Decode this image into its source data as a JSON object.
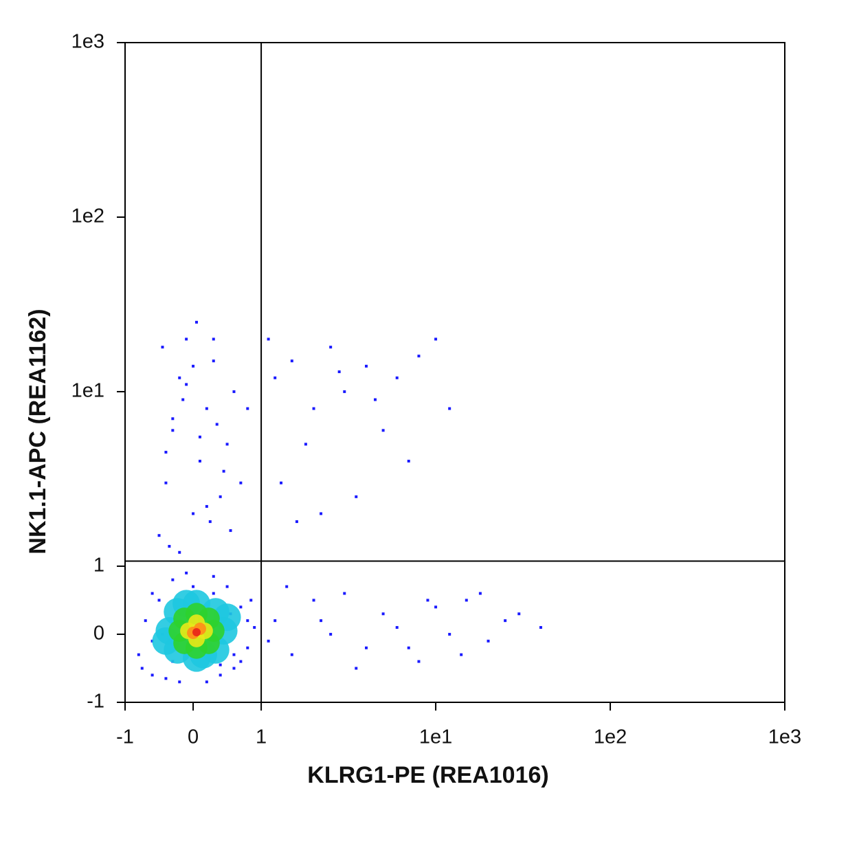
{
  "chart_data": {
    "type": "scatter",
    "x_label": "KLRG1-PE (REA1016)",
    "y_label": "NK1.1-APC (REA1162)",
    "scale": "biexponential",
    "xlim": [
      -1,
      1000
    ],
    "ylim": [
      -1,
      1000
    ],
    "xticks": [
      -1,
      0,
      1,
      {
        "value": 10,
        "label": "1e1"
      },
      {
        "value": 100,
        "label": "1e2"
      },
      {
        "value": 1000,
        "label": "1e3"
      }
    ],
    "yticks": [
      -1,
      0,
      1,
      {
        "value": 10,
        "label": "1e1"
      },
      {
        "value": 100,
        "label": "1e2"
      },
      {
        "value": 1000,
        "label": "1e3"
      }
    ],
    "gates": {
      "x": 1,
      "y": 1.07
    },
    "series": [
      {
        "color": "#1a1aff",
        "x": [
          -0.8,
          -0.7,
          -0.6,
          -0.5,
          -0.4,
          -0.3,
          -0.2,
          -0.1,
          0.2,
          0.3,
          0.4,
          0.5,
          0.6,
          0.7,
          0.8,
          0.9,
          -0.75,
          -0.6,
          -0.45,
          0.55,
          0.7,
          0.85,
          -0.3,
          0.0,
          0.3,
          0.6,
          -0.6,
          0.8,
          -0.2,
          0.4,
          -0.5,
          -0.4,
          -0.3,
          -0.2,
          -0.1,
          0,
          0.1,
          0.2,
          0.3,
          0.4,
          0.5,
          0.6,
          -0.45,
          -0.35,
          -0.15,
          0.05,
          0.25,
          0.45,
          -0.3,
          0,
          0.3,
          -0.2,
          0.2,
          0.1,
          -0.1,
          0.35,
          -0.4,
          0.55,
          0.7,
          0.8,
          1.2,
          1.5,
          2,
          2.5,
          3,
          4,
          5,
          6,
          8,
          12,
          1.3,
          1.8,
          2.2,
          3.5,
          1.1,
          2.8,
          4.5,
          1.6,
          7,
          10,
          1.2,
          1.5,
          2,
          2.5,
          3,
          4,
          5,
          6,
          8,
          10,
          12,
          15,
          20,
          25,
          30,
          40,
          1.4,
          3.5,
          7,
          18,
          1.1,
          2.2,
          9,
          14
        ],
        "y": [
          -0.3,
          0.2,
          -0.6,
          0.5,
          -0.65,
          0.8,
          -0.7,
          0.9,
          -0.7,
          0.85,
          -0.6,
          0.7,
          -0.5,
          0.4,
          -0.2,
          0.1,
          -0.5,
          0.6,
          0.0,
          0.3,
          -0.4,
          0.5,
          -0.4,
          0.7,
          0.6,
          -0.3,
          -0.1,
          0.2,
          0.3,
          -0.45,
          1.5,
          3,
          6,
          12,
          20,
          2,
          4,
          8,
          15,
          2.5,
          5,
          10,
          18,
          1.3,
          9,
          25,
          1.8,
          3.5,
          7,
          14,
          20,
          1.2,
          2.2,
          5.5,
          11,
          6.5,
          4.5,
          1.6,
          3,
          8,
          12,
          15,
          8,
          18,
          10,
          14,
          6,
          12,
          16,
          8,
          3,
          5,
          2,
          2.5,
          20,
          13,
          9,
          1.8,
          4,
          20,
          0.2,
          -0.3,
          0.5,
          0,
          0.6,
          -0.2,
          0.3,
          0.1,
          -0.4,
          0.4,
          0,
          0.5,
          -0.1,
          0.2,
          0.3,
          0.1,
          0.7,
          -0.5,
          -0.2,
          0.6,
          -0.1,
          0.2,
          0.5,
          -0.3
        ]
      },
      {
        "color": "#1ec8e0",
        "x": [
          0.45,
          0.33,
          0.05,
          -0.23,
          -0.35,
          -0.23,
          0.05,
          0.33,
          0.5,
          -0.4,
          0.15,
          -0.1
        ],
        "y": [
          0.05,
          0.33,
          0.45,
          0.33,
          0.05,
          -0.23,
          -0.35,
          -0.23,
          0.25,
          -0.1,
          -0.3,
          0.45
        ]
      },
      {
        "color": "#2ed12e",
        "x": [
          0.3,
          0.23,
          0.05,
          -0.13,
          -0.2,
          -0.13,
          0.05,
          0.23
        ],
        "y": [
          0.05,
          0.23,
          0.3,
          0.23,
          0.05,
          -0.13,
          -0.2,
          -0.13
        ]
      },
      {
        "color": "#e8e81a",
        "x": [
          0.17,
          0.05,
          -0.07,
          0.05
        ],
        "y": [
          0.05,
          0.17,
          0.05,
          -0.07
        ]
      },
      {
        "color": "#ff8c1a",
        "x": [
          0.1,
          0
        ],
        "y": [
          0.08,
          0.02
        ]
      },
      {
        "color": "#e8231a",
        "x": [
          0.05
        ],
        "y": [
          0.03
        ]
      }
    ]
  }
}
